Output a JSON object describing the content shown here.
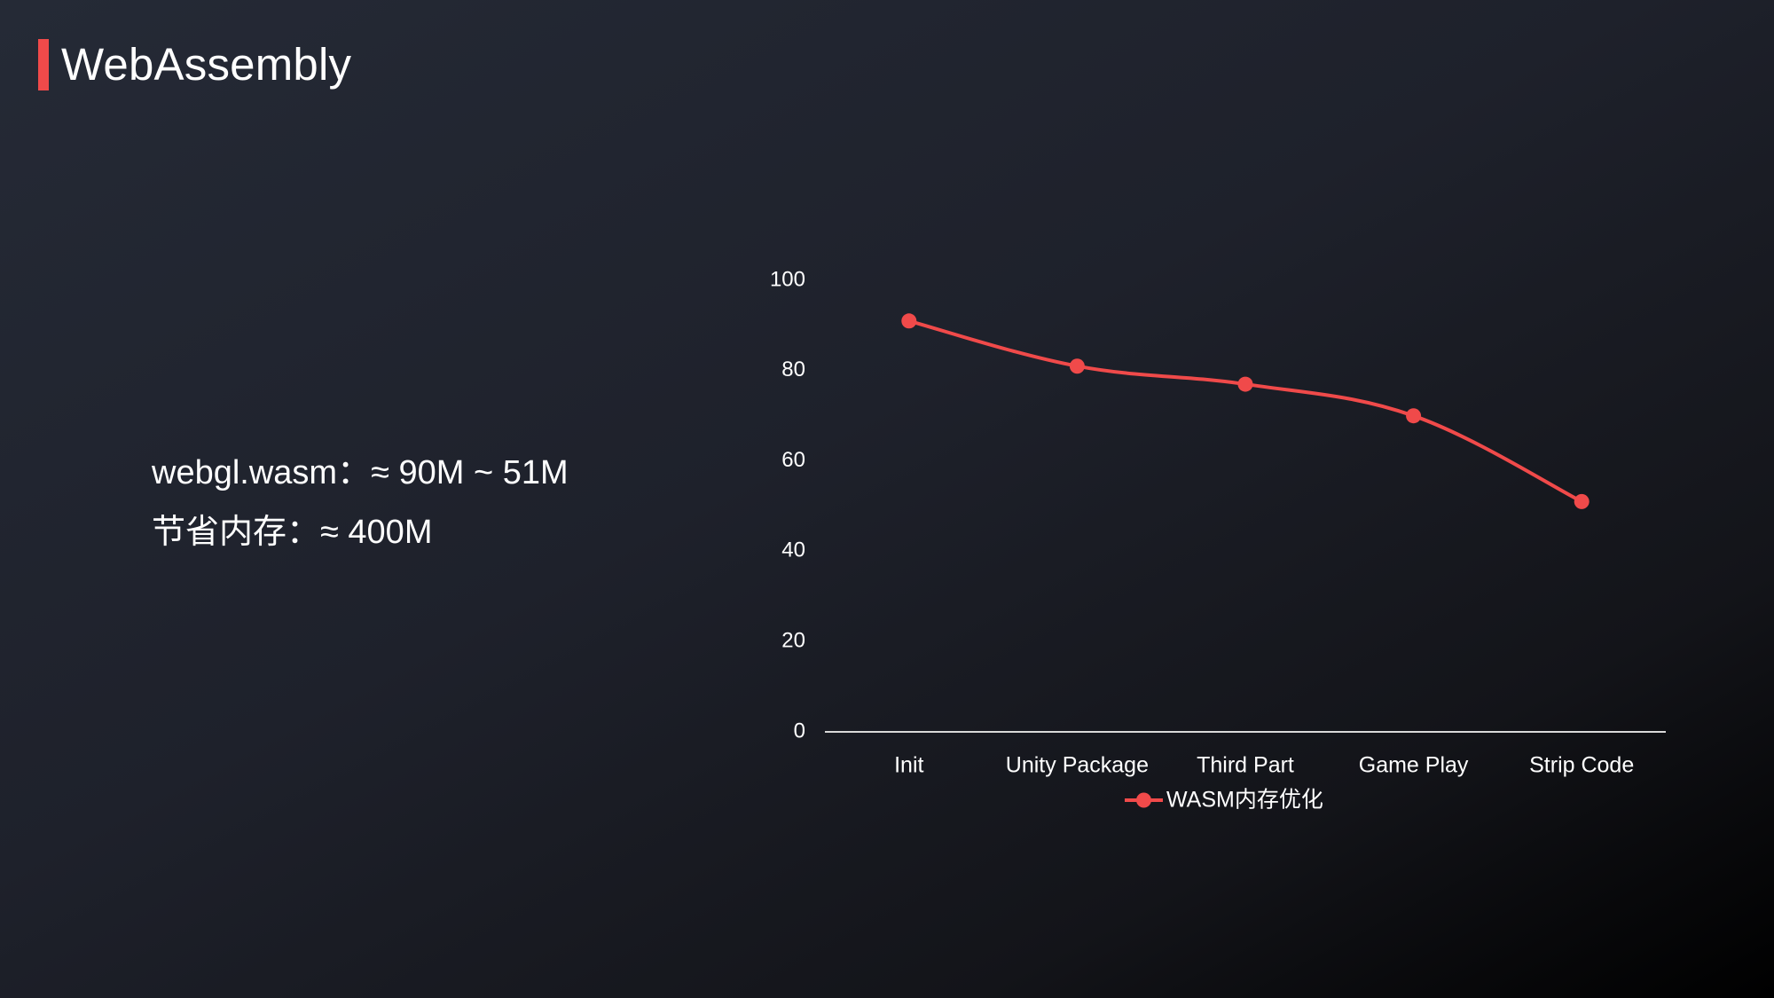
{
  "slide": {
    "title": "WebAssembly",
    "accent_color": "#f04a4a"
  },
  "stats": [
    "webgl.wasm：≈ 90M ~ 51M",
    "节省内存：≈ 400M"
  ],
  "chart_data": {
    "type": "line",
    "categories": [
      "Init",
      "Unity Package",
      "Third Part",
      "Game Play",
      "Strip Code"
    ],
    "series": [
      {
        "name": "WASM内存优化",
        "values": [
          91,
          81,
          77,
          70,
          51
        ],
        "color": "#f04a4a"
      }
    ],
    "yticks": [
      0,
      20,
      40,
      60,
      80,
      100
    ],
    "ylim": [
      0,
      100
    ],
    "smooth": true,
    "markers": true,
    "grid": false,
    "legend": "bottom-center"
  }
}
